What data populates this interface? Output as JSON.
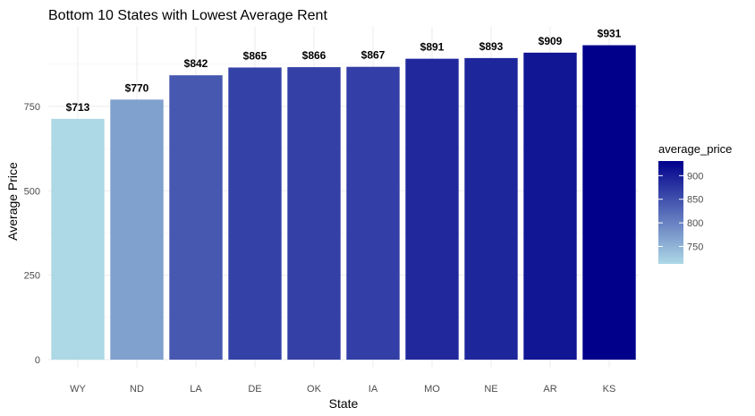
{
  "chart_data": {
    "type": "bar",
    "title": "Bottom 10 States with Lowest Average Rent",
    "xlabel": "State",
    "ylabel": "Average Price",
    "categories": [
      "WY",
      "ND",
      "LA",
      "DE",
      "OK",
      "IA",
      "MO",
      "NE",
      "AR",
      "KS"
    ],
    "values": [
      713,
      770,
      842,
      865,
      866,
      867,
      891,
      893,
      909,
      931
    ],
    "data_labels": [
      "$713",
      "$770",
      "$842",
      "$865",
      "$866",
      "$867",
      "$891",
      "$893",
      "$909",
      "$931"
    ],
    "ylim": [
      0,
      960
    ],
    "yticks": [
      0,
      250,
      500,
      750
    ],
    "ytick_labels": [
      "0",
      "250",
      "500",
      "750"
    ],
    "grid": true,
    "legend": {
      "title": "average_price",
      "position": "right",
      "ticks": [
        750,
        800,
        850,
        900
      ],
      "tick_labels": [
        "750",
        "800",
        "850",
        "900"
      ],
      "range": [
        713,
        931
      ],
      "color_low": "#add8e6",
      "color_high": "#00008b"
    }
  }
}
